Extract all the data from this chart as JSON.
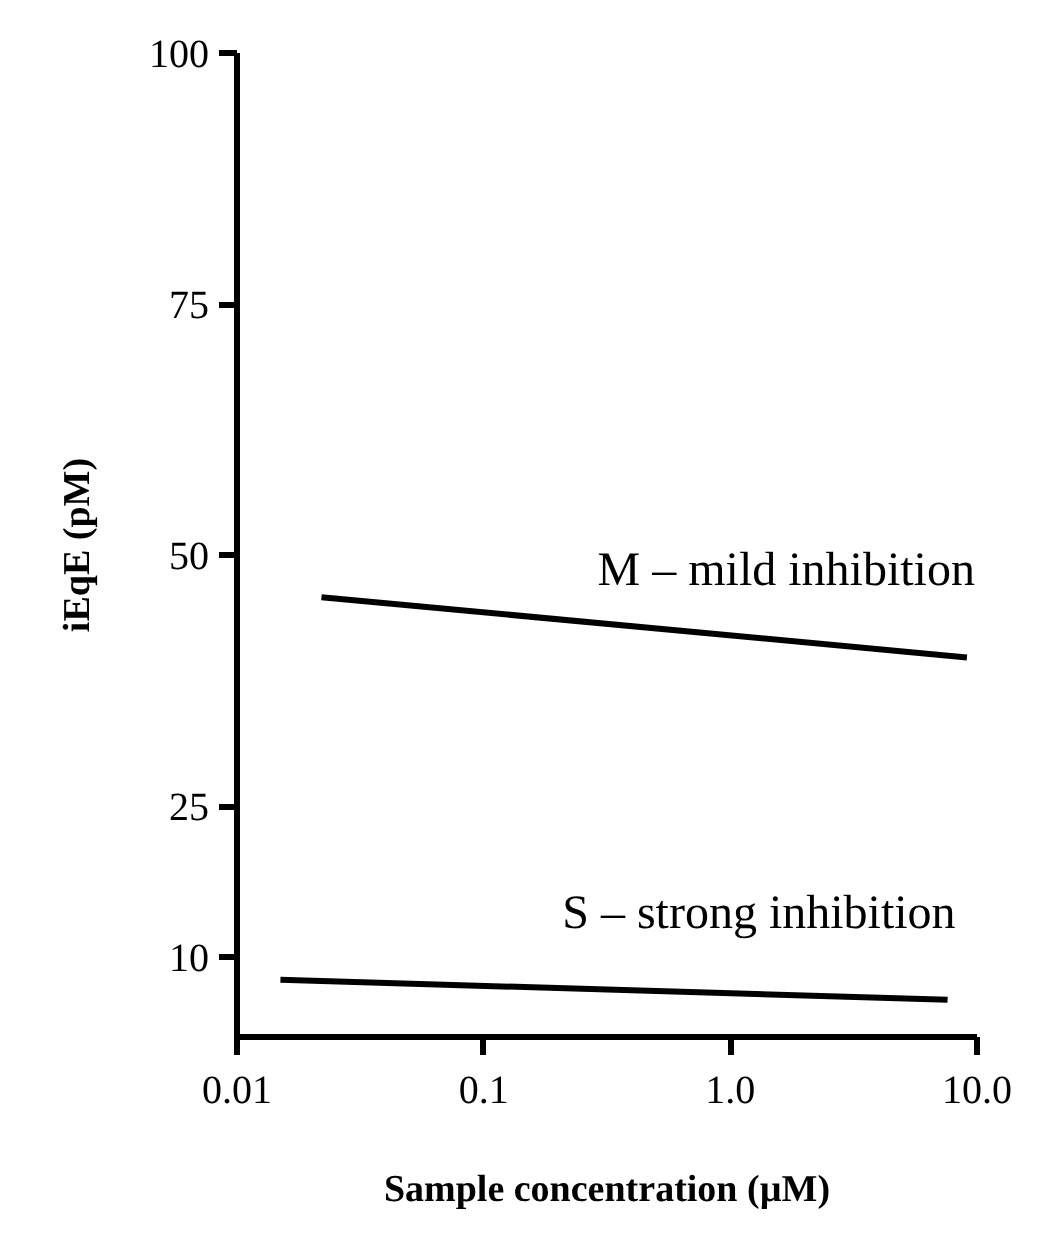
{
  "chart_data": {
    "type": "line",
    "xlabel": "Sample concentration (µM)",
    "ylabel": "iEqE (pM)",
    "log": "x",
    "grid": false,
    "marker": "none",
    "line_style": "solid",
    "xlim": [
      0.01,
      10
    ],
    "xticks": [
      0.01,
      0.1,
      {
        "value": 1,
        "label": "1.0"
      },
      {
        "value": 10,
        "label": "10.0"
      }
    ],
    "ylim": [
      2,
      100
    ],
    "yticks": [
      10,
      25,
      50,
      75,
      100
    ],
    "series": [
      {
        "name": "M – mild inhibition",
        "color": "#000000",
        "x": [
          0.022,
          9.1
        ],
        "values": [
          45.8,
          39.8
        ]
      },
      {
        "name": "S – strong inhibition",
        "color": "#000000",
        "x": [
          0.015,
          7.6
        ],
        "values": [
          7.7,
          5.7
        ]
      }
    ]
  }
}
